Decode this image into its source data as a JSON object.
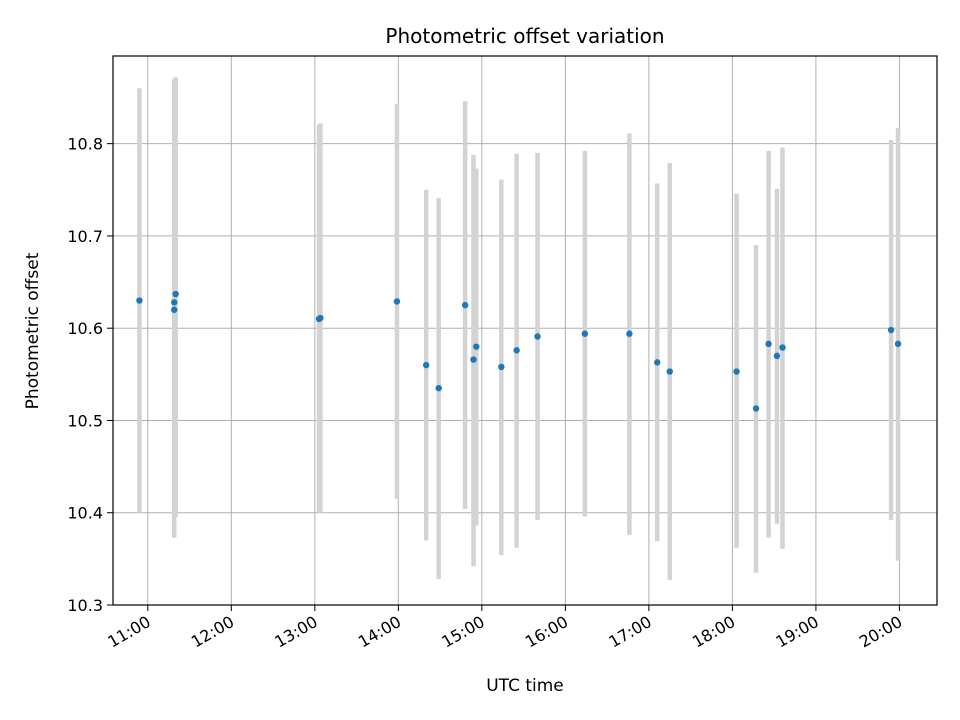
{
  "chart_data": {
    "type": "scatter",
    "title": "Photometric offset variation",
    "xlabel": "UTC time",
    "ylabel": "Photometric offset",
    "xlim": [
      "10:35",
      "20:27"
    ],
    "ylim": [
      10.3,
      10.895
    ],
    "xticks": [
      "11:00",
      "12:00",
      "13:00",
      "14:00",
      "15:00",
      "16:00",
      "17:00",
      "18:00",
      "19:00",
      "20:00"
    ],
    "yticks": [
      "10.3",
      "10.4",
      "10.5",
      "10.6",
      "10.7",
      "10.8"
    ],
    "grid": true,
    "colors": {
      "points": "#1f77b4",
      "errorbars": "#d3d3d3",
      "grid": "#b0b0b0"
    },
    "points": [
      {
        "x": "10:54",
        "y": 10.63,
        "low": 10.4,
        "high": 10.86
      },
      {
        "x": "11:19",
        "y": 10.62,
        "low": 10.373,
        "high": 10.866
      },
      {
        "x": "11:19",
        "y": 10.628,
        "low": 10.385,
        "high": 10.87
      },
      {
        "x": "11:20",
        "y": 10.637,
        "low": 10.395,
        "high": 10.872
      },
      {
        "x": "13:03",
        "y": 10.61,
        "low": 10.4,
        "high": 10.82
      },
      {
        "x": "13:04",
        "y": 10.611,
        "low": 10.4,
        "high": 10.822
      },
      {
        "x": "13:59",
        "y": 10.629,
        "low": 10.415,
        "high": 10.843
      },
      {
        "x": "14:20",
        "y": 10.56,
        "low": 10.37,
        "high": 10.75
      },
      {
        "x": "14:29",
        "y": 10.535,
        "low": 10.328,
        "high": 10.741
      },
      {
        "x": "14:48",
        "y": 10.625,
        "low": 10.404,
        "high": 10.846
      },
      {
        "x": "14:54",
        "y": 10.566,
        "low": 10.342,
        "high": 10.788
      },
      {
        "x": "14:56",
        "y": 10.58,
        "low": 10.386,
        "high": 10.773
      },
      {
        "x": "15:14",
        "y": 10.558,
        "low": 10.354,
        "high": 10.761
      },
      {
        "x": "15:25",
        "y": 10.576,
        "low": 10.362,
        "high": 10.789
      },
      {
        "x": "15:40",
        "y": 10.591,
        "low": 10.392,
        "high": 10.79
      },
      {
        "x": "16:14",
        "y": 10.594,
        "low": 10.396,
        "high": 10.792
      },
      {
        "x": "16:46",
        "y": 10.594,
        "low": 10.376,
        "high": 10.811
      },
      {
        "x": "17:06",
        "y": 10.563,
        "low": 10.369,
        "high": 10.757
      },
      {
        "x": "17:15",
        "y": 10.553,
        "low": 10.327,
        "high": 10.779
      },
      {
        "x": "18:03",
        "y": 10.553,
        "low": 10.362,
        "high": 10.746
      },
      {
        "x": "18:17",
        "y": 10.513,
        "low": 10.335,
        "high": 10.69
      },
      {
        "x": "18:26",
        "y": 10.583,
        "low": 10.373,
        "high": 10.792
      },
      {
        "x": "18:32",
        "y": 10.57,
        "low": 10.388,
        "high": 10.751
      },
      {
        "x": "18:36",
        "y": 10.579,
        "low": 10.361,
        "high": 10.796
      },
      {
        "x": "19:54",
        "y": 10.598,
        "low": 10.392,
        "high": 10.804
      },
      {
        "x": "19:59",
        "y": 10.583,
        "low": 10.348,
        "high": 10.817
      }
    ]
  }
}
